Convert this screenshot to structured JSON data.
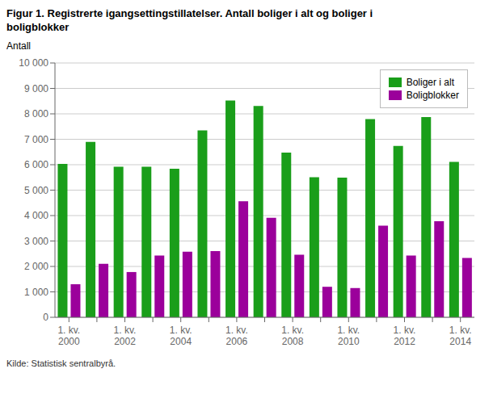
{
  "chart_data": {
    "type": "bar",
    "title": "Figur 1. Registrerte igangsettingstillatelser. Antall boliger i alt og boliger i\nboligblokker",
    "y_label": "Antall",
    "annotations": [
      "Kilde: Statistisk sentralbyrå."
    ],
    "categories": [
      "1. kv.\n2000",
      null,
      "1. kv.\n2002",
      null,
      "1. kv.\n2004",
      null,
      "1. kv.\n2006",
      null,
      "1. kv.\n2008",
      null,
      "1. kv.\n2010",
      null,
      "1. kv.\n2012",
      null,
      "1. kv.\n2014"
    ],
    "series": [
      {
        "name": "Boliger i alt",
        "color": "#1a9e1a",
        "values": [
          6030,
          6900,
          5920,
          5920,
          5840,
          7350,
          8520,
          8310,
          6480,
          5510,
          5490,
          7790,
          6740,
          7870,
          6110
        ]
      },
      {
        "name": "Boligblokker",
        "color": "#9b009b",
        "values": [
          1300,
          2100,
          1780,
          2430,
          2580,
          2600,
          4560,
          3910,
          2460,
          1200,
          1150,
          3600,
          2430,
          3780,
          2330
        ]
      }
    ],
    "ylim": [
      0,
      10000
    ],
    "yticks": [
      0,
      {
        "value": 1000,
        "label": "1 000"
      },
      {
        "value": 2000,
        "label": "2 000"
      },
      {
        "value": 3000,
        "label": "3 000"
      },
      {
        "value": 4000,
        "label": "4 000"
      },
      {
        "value": 5000,
        "label": "5 000"
      },
      {
        "value": 6000,
        "label": "6 000"
      },
      {
        "value": 7000,
        "label": "7 000"
      },
      {
        "value": 8000,
        "label": "8 000"
      },
      {
        "value": 9000,
        "label": "9 000"
      },
      {
        "value": 10000,
        "label": "10 000"
      }
    ],
    "grid": true,
    "legend": "upper right"
  }
}
